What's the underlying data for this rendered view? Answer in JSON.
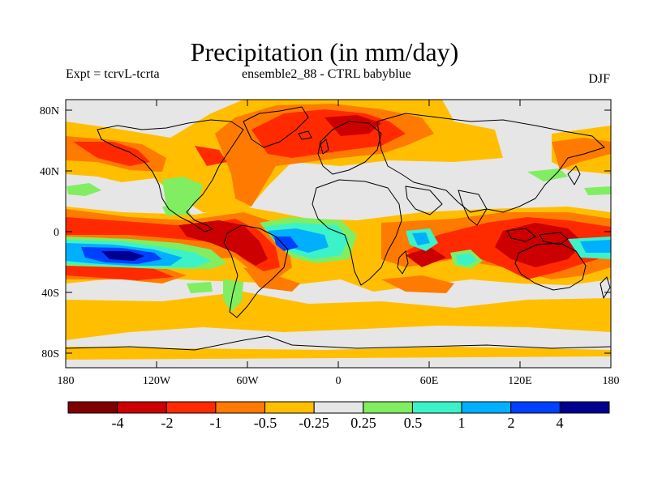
{
  "title": "Precipitation (in mm/day)",
  "subtitle_left": "Expt = tcrvL-tcrta",
  "subtitle_center": "ensemble2_88 - CTRL babyblue",
  "season": "DJF",
  "lat_ticks": [
    "80N",
    "40N",
    "0",
    "40S",
    "80S"
  ],
  "lon_ticks": [
    "180",
    "120W",
    "60W",
    "0",
    "60E",
    "120E",
    "180"
  ],
  "colorbar": {
    "colors": [
      "#800000",
      "#cc0000",
      "#ff2a00",
      "#ff7a00",
      "#ffbf00",
      "#e6e6e6",
      "#80ee60",
      "#3cf2c8",
      "#00b0ff",
      "#0040ff",
      "#000090"
    ],
    "labels": [
      "-4",
      "-2",
      "-1",
      "-0.5",
      "-0.25",
      "0.25",
      "0.5",
      "1",
      "2",
      "4"
    ]
  },
  "colors": {
    "background": "#e6e6e6",
    "coastline": "#000000"
  }
}
